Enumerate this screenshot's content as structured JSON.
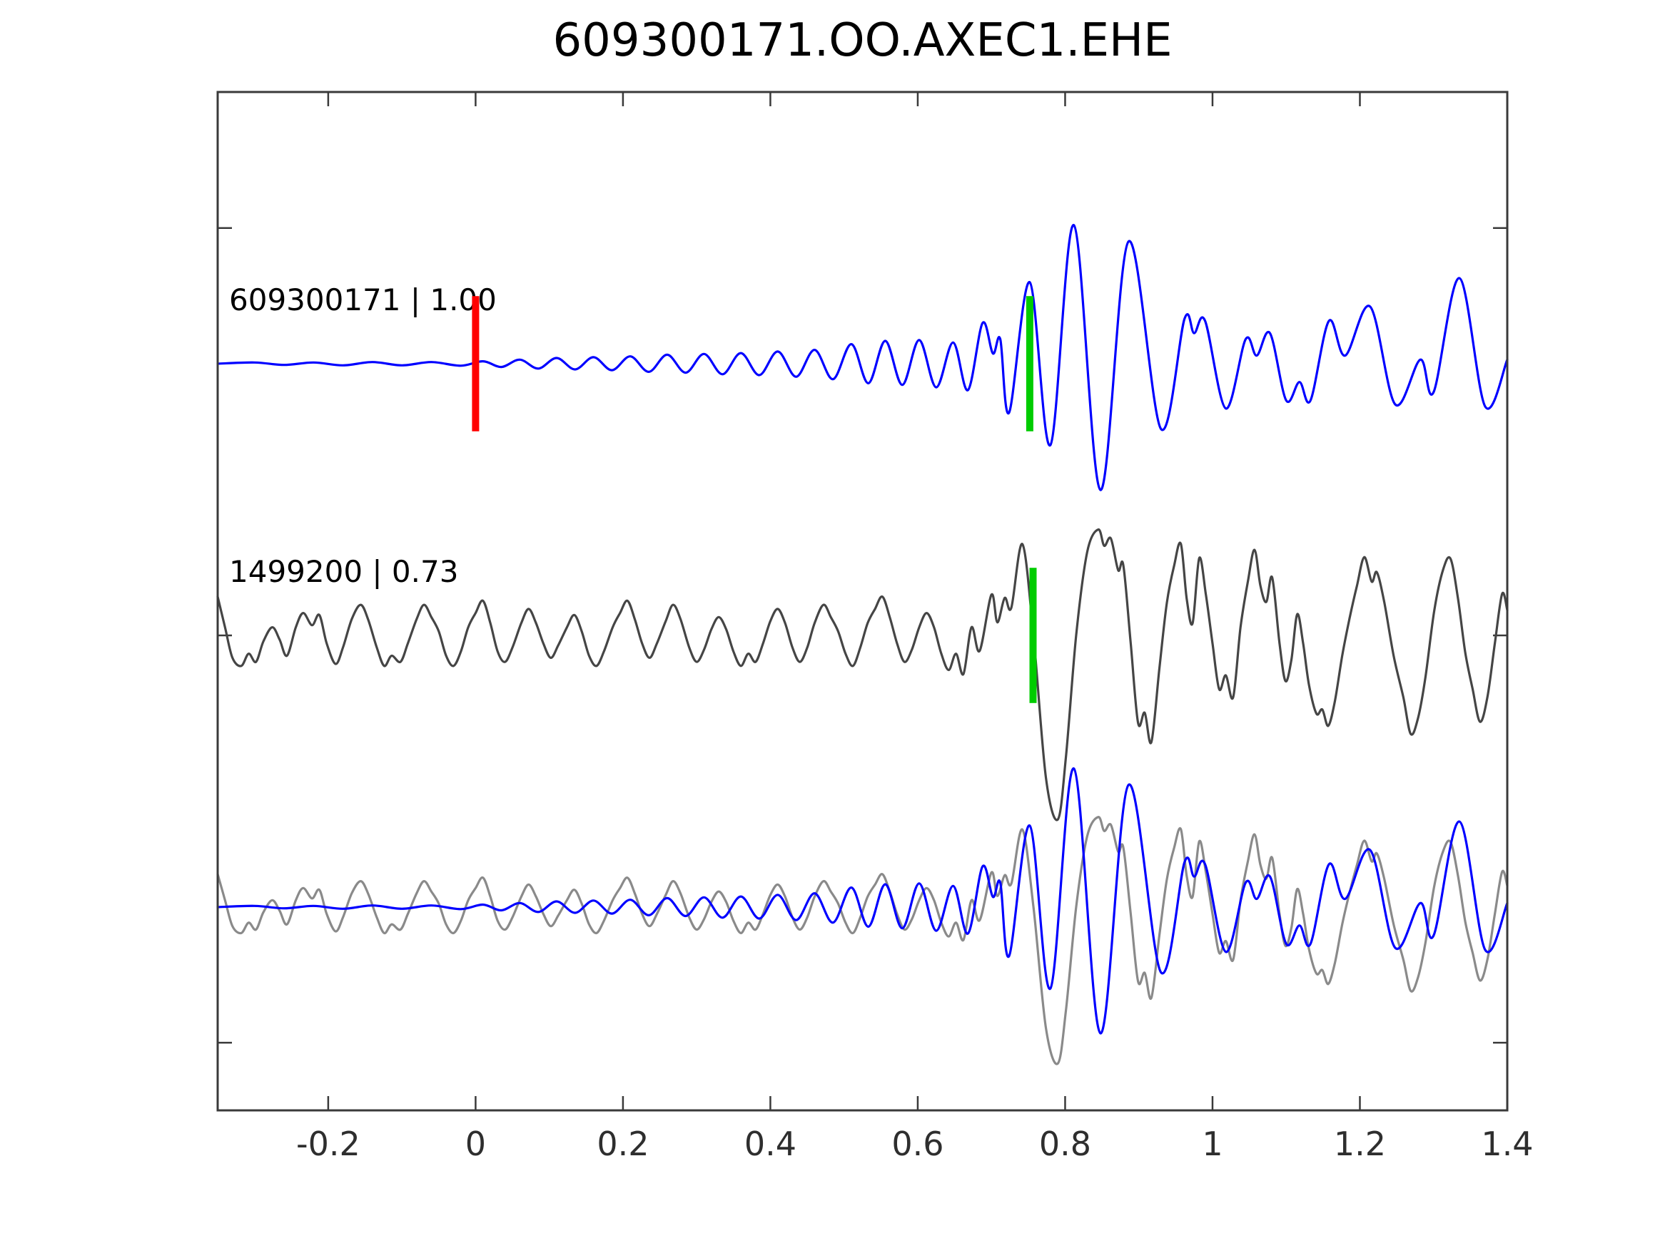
{
  "title": "609300171.OO.AXEC1.EHE",
  "colors": {
    "template_line": "#0000ff",
    "detection_line": "#454545",
    "overlay_detection_line": "#8a8a8a",
    "origin_marker": "#ff0000",
    "pick_marker": "#00cc00",
    "axis": "#3a3a3a",
    "tick_label": "#2e2e2e"
  },
  "chart_data": {
    "type": "line",
    "title": "609300171.OO.AXEC1.EHE",
    "xlabel": "",
    "ylabel": "",
    "xlim": [
      -0.35,
      1.4
    ],
    "ylim": [
      -1.166,
      1.334
    ],
    "grid": false,
    "legend": "none",
    "x_ticks": {
      "values": [
        -0.2,
        0,
        0.2,
        0.4,
        0.6,
        0.8,
        1,
        1.2,
        1.4
      ],
      "labels": [
        "-0.2",
        "0",
        "0.2",
        "0.4",
        "0.6",
        "0.8",
        "1",
        "1.2",
        "1.4"
      ]
    },
    "y_ticks": {
      "values": [
        -1,
        0,
        1
      ],
      "labels": [
        "",
        "",
        ""
      ]
    },
    "traces": [
      {
        "name": "template",
        "label": "609300171 | 1.00",
        "color": "#0000ff",
        "offset": 0.667,
        "scale": 1.0,
        "points": [
          [
            -0.35,
            0.0
          ],
          [
            -0.3,
            0.003
          ],
          [
            -0.26,
            -0.003
          ],
          [
            -0.22,
            0.003
          ],
          [
            -0.18,
            -0.004
          ],
          [
            -0.14,
            0.004
          ],
          [
            -0.1,
            -0.004
          ],
          [
            -0.06,
            0.004
          ],
          [
            -0.02,
            -0.005
          ],
          [
            0.01,
            0.006
          ],
          [
            0.035,
            -0.008
          ],
          [
            0.06,
            0.01
          ],
          [
            0.085,
            -0.012
          ],
          [
            0.11,
            0.014
          ],
          [
            0.135,
            -0.014
          ],
          [
            0.16,
            0.016
          ],
          [
            0.185,
            -0.016
          ],
          [
            0.21,
            0.018
          ],
          [
            0.235,
            -0.02
          ],
          [
            0.26,
            0.022
          ],
          [
            0.285,
            -0.022
          ],
          [
            0.31,
            0.024
          ],
          [
            0.335,
            -0.026
          ],
          [
            0.36,
            0.026
          ],
          [
            0.385,
            -0.028
          ],
          [
            0.41,
            0.03
          ],
          [
            0.435,
            -0.032
          ],
          [
            0.46,
            0.034
          ],
          [
            0.485,
            -0.038
          ],
          [
            0.51,
            0.048
          ],
          [
            0.533,
            -0.048
          ],
          [
            0.556,
            0.056
          ],
          [
            0.579,
            -0.052
          ],
          [
            0.602,
            0.058
          ],
          [
            0.625,
            -0.058
          ],
          [
            0.648,
            0.052
          ],
          [
            0.668,
            -0.065
          ],
          [
            0.688,
            0.1
          ],
          [
            0.702,
            0.025
          ],
          [
            0.712,
            0.06
          ],
          [
            0.724,
            -0.12
          ],
          [
            0.752,
            0.2
          ],
          [
            0.78,
            -0.2
          ],
          [
            0.812,
            0.34
          ],
          [
            0.848,
            -0.31
          ],
          [
            0.886,
            0.3
          ],
          [
            0.93,
            -0.16
          ],
          [
            0.962,
            0.11
          ],
          [
            0.975,
            0.075
          ],
          [
            0.99,
            0.105
          ],
          [
            1.018,
            -0.11
          ],
          [
            1.045,
            0.06
          ],
          [
            1.06,
            0.02
          ],
          [
            1.078,
            0.075
          ],
          [
            1.1,
            -0.09
          ],
          [
            1.118,
            -0.045
          ],
          [
            1.133,
            -0.09
          ],
          [
            1.158,
            0.105
          ],
          [
            1.18,
            0.02
          ],
          [
            1.214,
            0.14
          ],
          [
            1.248,
            -0.1
          ],
          [
            1.282,
            0.01
          ],
          [
            1.3,
            -0.07
          ],
          [
            1.335,
            0.21
          ],
          [
            1.37,
            -0.105
          ],
          [
            1.4,
            0.01
          ]
        ]
      },
      {
        "name": "detection",
        "label": "1499200 | 0.73",
        "color": "#454545",
        "offset": 0.0,
        "scale": 1.0,
        "points": [
          [
            -0.35,
            0.095
          ],
          [
            -0.34,
            0.02
          ],
          [
            -0.33,
            -0.055
          ],
          [
            -0.318,
            -0.075
          ],
          [
            -0.308,
            -0.045
          ],
          [
            -0.298,
            -0.065
          ],
          [
            -0.288,
            -0.015
          ],
          [
            -0.276,
            0.02
          ],
          [
            -0.266,
            -0.01
          ],
          [
            -0.256,
            -0.05
          ],
          [
            -0.244,
            0.02
          ],
          [
            -0.234,
            0.055
          ],
          [
            -0.222,
            0.025
          ],
          [
            -0.212,
            0.05
          ],
          [
            -0.202,
            -0.02
          ],
          [
            -0.19,
            -0.07
          ],
          [
            -0.18,
            -0.03
          ],
          [
            -0.168,
            0.04
          ],
          [
            -0.156,
            0.075
          ],
          [
            -0.146,
            0.04
          ],
          [
            -0.134,
            -0.03
          ],
          [
            -0.124,
            -0.075
          ],
          [
            -0.114,
            -0.05
          ],
          [
            -0.102,
            -0.065
          ],
          [
            -0.092,
            -0.02
          ],
          [
            -0.08,
            0.04
          ],
          [
            -0.07,
            0.075
          ],
          [
            -0.06,
            0.045
          ],
          [
            -0.05,
            0.01
          ],
          [
            -0.04,
            -0.05
          ],
          [
            -0.03,
            -0.075
          ],
          [
            -0.02,
            -0.04
          ],
          [
            -0.01,
            0.02
          ],
          [
            0.0,
            0.055
          ],
          [
            0.01,
            0.085
          ],
          [
            0.02,
            0.03
          ],
          [
            0.03,
            -0.04
          ],
          [
            0.04,
            -0.065
          ],
          [
            0.05,
            -0.03
          ],
          [
            0.062,
            0.03
          ],
          [
            0.072,
            0.065
          ],
          [
            0.082,
            0.03
          ],
          [
            0.092,
            -0.02
          ],
          [
            0.102,
            -0.055
          ],
          [
            0.112,
            -0.025
          ],
          [
            0.124,
            0.02
          ],
          [
            0.134,
            0.05
          ],
          [
            0.144,
            0.01
          ],
          [
            0.154,
            -0.05
          ],
          [
            0.164,
            -0.075
          ],
          [
            0.174,
            -0.04
          ],
          [
            0.186,
            0.02
          ],
          [
            0.196,
            0.055
          ],
          [
            0.206,
            0.085
          ],
          [
            0.216,
            0.04
          ],
          [
            0.226,
            -0.02
          ],
          [
            0.236,
            -0.055
          ],
          [
            0.246,
            -0.02
          ],
          [
            0.258,
            0.035
          ],
          [
            0.268,
            0.075
          ],
          [
            0.278,
            0.04
          ],
          [
            0.29,
            -0.03
          ],
          [
            0.3,
            -0.065
          ],
          [
            0.31,
            -0.035
          ],
          [
            0.32,
            0.015
          ],
          [
            0.33,
            0.045
          ],
          [
            0.34,
            0.015
          ],
          [
            0.35,
            -0.04
          ],
          [
            0.36,
            -0.075
          ],
          [
            0.37,
            -0.045
          ],
          [
            0.38,
            -0.065
          ],
          [
            0.39,
            -0.02
          ],
          [
            0.4,
            0.035
          ],
          [
            0.41,
            0.065
          ],
          [
            0.42,
            0.03
          ],
          [
            0.43,
            -0.03
          ],
          [
            0.44,
            -0.065
          ],
          [
            0.45,
            -0.03
          ],
          [
            0.46,
            0.03
          ],
          [
            0.472,
            0.075
          ],
          [
            0.482,
            0.045
          ],
          [
            0.492,
            0.01
          ],
          [
            0.502,
            -0.045
          ],
          [
            0.512,
            -0.075
          ],
          [
            0.522,
            -0.03
          ],
          [
            0.532,
            0.03
          ],
          [
            0.542,
            0.065
          ],
          [
            0.552,
            0.095
          ],
          [
            0.562,
            0.045
          ],
          [
            0.572,
            -0.02
          ],
          [
            0.582,
            -0.065
          ],
          [
            0.592,
            -0.035
          ],
          [
            0.602,
            0.02
          ],
          [
            0.612,
            0.055
          ],
          [
            0.622,
            0.02
          ],
          [
            0.632,
            -0.045
          ],
          [
            0.642,
            -0.085
          ],
          [
            0.652,
            -0.045
          ],
          [
            0.662,
            -0.095
          ],
          [
            0.673,
            0.02
          ],
          [
            0.684,
            -0.038
          ],
          [
            0.7,
            0.1
          ],
          [
            0.708,
            0.032
          ],
          [
            0.718,
            0.092
          ],
          [
            0.727,
            0.068
          ],
          [
            0.742,
            0.224
          ],
          [
            0.757,
            0.0
          ],
          [
            0.774,
            -0.35
          ],
          [
            0.79,
            -0.452
          ],
          [
            0.801,
            -0.3
          ],
          [
            0.815,
            0.0
          ],
          [
            0.83,
            0.205
          ],
          [
            0.845,
            0.26
          ],
          [
            0.853,
            0.22
          ],
          [
            0.862,
            0.238
          ],
          [
            0.872,
            0.16
          ],
          [
            0.879,
            0.172
          ],
          [
            0.889,
            -0.02
          ],
          [
            0.899,
            -0.215
          ],
          [
            0.908,
            -0.19
          ],
          [
            0.917,
            -0.262
          ],
          [
            0.928,
            -0.08
          ],
          [
            0.938,
            0.08
          ],
          [
            0.948,
            0.172
          ],
          [
            0.957,
            0.225
          ],
          [
            0.965,
            0.09
          ],
          [
            0.973,
            0.03
          ],
          [
            0.982,
            0.19
          ],
          [
            0.991,
            0.1
          ],
          [
            1.0,
            -0.02
          ],
          [
            1.009,
            -0.132
          ],
          [
            1.018,
            -0.098
          ],
          [
            1.028,
            -0.152
          ],
          [
            1.038,
            0.02
          ],
          [
            1.048,
            0.132
          ],
          [
            1.057,
            0.21
          ],
          [
            1.065,
            0.122
          ],
          [
            1.073,
            0.082
          ],
          [
            1.081,
            0.142
          ],
          [
            1.091,
            -0.02
          ],
          [
            1.099,
            -0.112
          ],
          [
            1.107,
            -0.06
          ],
          [
            1.115,
            0.052
          ],
          [
            1.123,
            -0.02
          ],
          [
            1.131,
            -0.122
          ],
          [
            1.141,
            -0.192
          ],
          [
            1.149,
            -0.182
          ],
          [
            1.157,
            -0.222
          ],
          [
            1.166,
            -0.162
          ],
          [
            1.176,
            -0.05
          ],
          [
            1.186,
            0.042
          ],
          [
            1.196,
            0.122
          ],
          [
            1.206,
            0.192
          ],
          [
            1.216,
            0.132
          ],
          [
            1.223,
            0.155
          ],
          [
            1.233,
            0.082
          ],
          [
            1.246,
            -0.052
          ],
          [
            1.259,
            -0.152
          ],
          [
            1.269,
            -0.242
          ],
          [
            1.279,
            -0.202
          ],
          [
            1.289,
            -0.102
          ],
          [
            1.301,
            0.062
          ],
          [
            1.313,
            0.162
          ],
          [
            1.323,
            0.188
          ],
          [
            1.333,
            0.092
          ],
          [
            1.343,
            -0.042
          ],
          [
            1.353,
            -0.132
          ],
          [
            1.363,
            -0.212
          ],
          [
            1.373,
            -0.152
          ],
          [
            1.383,
            -0.022
          ],
          [
            1.393,
            0.102
          ],
          [
            1.4,
            0.062
          ]
        ]
      },
      {
        "name": "overlay-detection",
        "label": "",
        "color": "#8a8a8a",
        "offset": -0.667,
        "scale": 0.85,
        "points_ref": "detection"
      },
      {
        "name": "overlay-template",
        "label": "",
        "color": "#0000ff",
        "offset": -0.667,
        "scale": 1.0,
        "points_ref": "template"
      }
    ],
    "markers": [
      {
        "name": "template-origin-marker",
        "trace": "template",
        "t": 0.0,
        "color": "#ff0000",
        "half_height": 0.166
      },
      {
        "name": "template-pick-marker",
        "trace": "template",
        "t": 0.752,
        "color": "#00cc00",
        "half_height": 0.166
      },
      {
        "name": "detection-pick-marker",
        "trace": "detection",
        "t": 0.7565,
        "color": "#00cc00",
        "half_height": 0.166
      }
    ]
  }
}
